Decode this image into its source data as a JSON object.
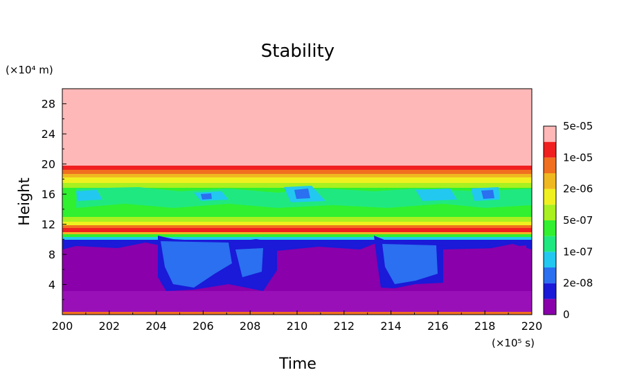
{
  "chart_data": {
    "type": "heatmap",
    "title": "Stability",
    "xlabel": "Time",
    "ylabel": "Height",
    "x_unit": "(×10⁵ s)",
    "y_unit": "(×10⁴ m)",
    "xlim": [
      200,
      220
    ],
    "ylim": [
      0,
      30
    ],
    "x_ticks": [
      "200",
      "202",
      "204",
      "206",
      "208",
      "210",
      "212",
      "214",
      "216",
      "218",
      "220"
    ],
    "y_ticks": [
      "4",
      "8",
      "12",
      "16",
      "20",
      "24",
      "28"
    ],
    "x_tick_values": [
      200,
      202,
      204,
      206,
      208,
      210,
      212,
      214,
      216,
      218,
      220
    ],
    "y_tick_values": [
      4,
      8,
      12,
      16,
      20,
      24,
      28
    ],
    "colorbar": {
      "labels": [
        "0",
        "2e-08",
        "1e-07",
        "5e-07",
        "2e-06",
        "1e-05",
        "5e-05"
      ],
      "colors": [
        "#8a00aa",
        "#1a1ad8",
        "#2a70f0",
        "#22c8f0",
        "#20e880",
        "#30f030",
        "#a8f020",
        "#f0f020",
        "#f0b820",
        "#f07020",
        "#f02020",
        "#ffb8b8"
      ]
    },
    "grid": false,
    "layers": [
      {
        "level": "0",
        "color": "#8a00aa",
        "y_range": [
          0,
          10.3
        ]
      },
      {
        "level": "2e-08",
        "color": "#1a1ad8",
        "y_range": [
          3.5,
          10.3
        ]
      },
      {
        "level": "1e-07",
        "color": "#2a70f0",
        "y_range": [
          10.3,
          10.8
        ]
      },
      {
        "level": "5e-07",
        "color": "#22c8f0",
        "y_range": [
          10.8,
          11.0
        ]
      },
      {
        "level": "5e-05",
        "color": "#f02020",
        "y_range": [
          11.3,
          12.0
        ]
      },
      {
        "level": "2e-06",
        "color": "#30f030",
        "y_range": [
          13.0,
          17.0
        ]
      },
      {
        "level": "1e-05",
        "color": "#f0b820",
        "y_range": [
          18.8,
          19.4
        ]
      },
      {
        "level": "above 5e-05",
        "color": "#ffb8b8",
        "y_range": [
          19.6,
          30
        ]
      }
    ]
  }
}
